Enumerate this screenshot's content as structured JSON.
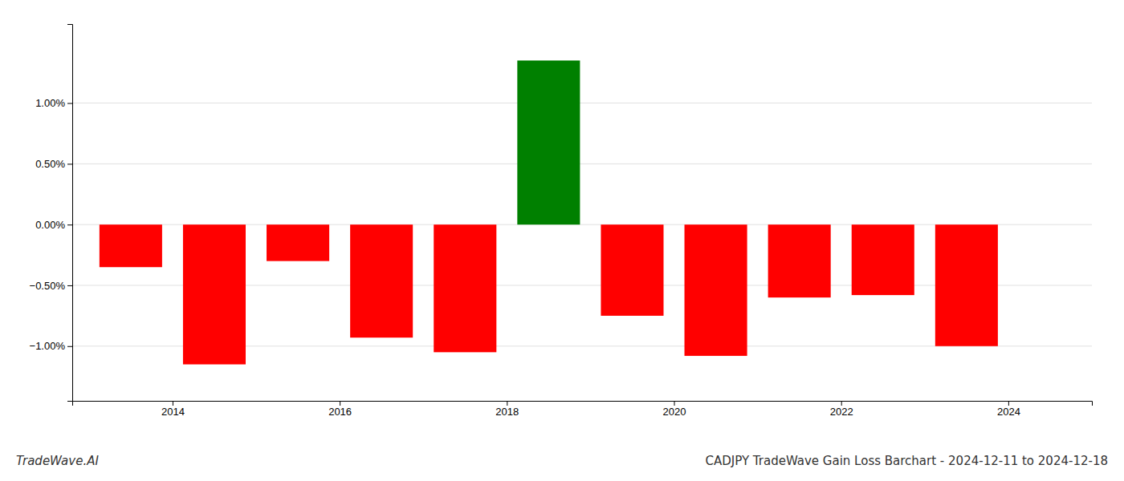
{
  "chart_data": {
    "type": "bar",
    "title": "CADJPY TradeWave Gain Loss Barchart - 2024-12-11 to 2024-12-18",
    "annotations": [
      "TradeWave.AI"
    ],
    "x": [
      2013.5,
      2014.5,
      2015.5,
      2016.5,
      2017.5,
      2018.5,
      2019.5,
      2020.5,
      2021.5,
      2022.5,
      2023.5
    ],
    "values": [
      -0.35,
      -1.15,
      -0.3,
      -0.93,
      -1.05,
      1.35,
      -0.75,
      -1.08,
      -0.6,
      -0.58,
      -1.0
    ],
    "colors": [
      "#ff0000",
      "#ff0000",
      "#ff0000",
      "#ff0000",
      "#ff0000",
      "#008000",
      "#ff0000",
      "#ff0000",
      "#ff0000",
      "#ff0000",
      "#ff0000"
    ],
    "xlim": [
      2012.8,
      2025.0
    ],
    "xticks": [
      2014,
      2016,
      2018,
      2020,
      2022,
      2024
    ],
    "ylim": [
      -1.45,
      1.65
    ],
    "yticks": [
      {
        "value": -1.0,
        "label": "−1.00%"
      },
      {
        "value": -0.5,
        "label": "−0.50%"
      },
      {
        "value": 0.0,
        "label": "0.00%"
      },
      {
        "value": 0.5,
        "label": "0.50%"
      },
      {
        "value": 1.0,
        "label": "1.00%"
      }
    ],
    "grid": true
  }
}
